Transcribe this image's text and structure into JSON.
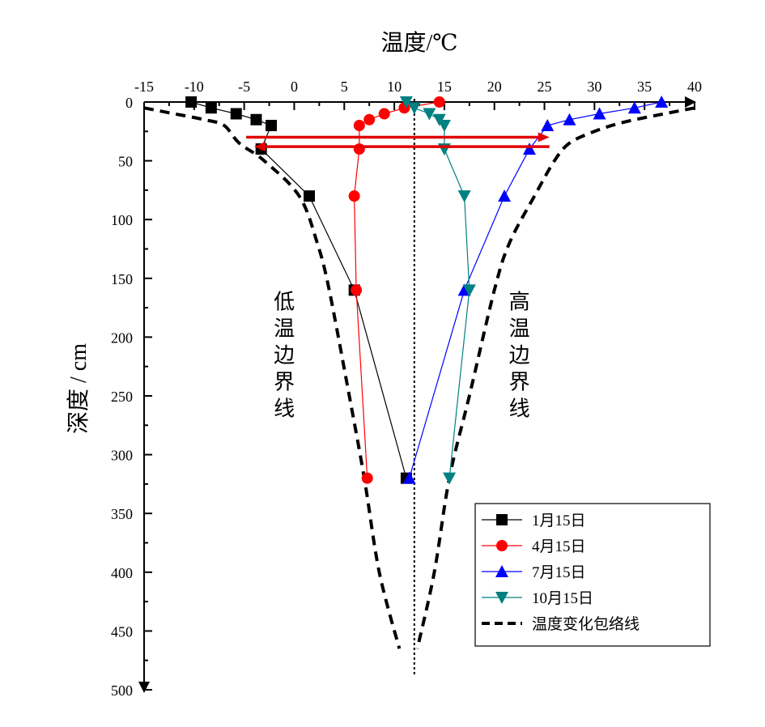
{
  "chart_data": {
    "type": "line",
    "title": "",
    "xlabel": "温度/℃",
    "ylabel": "深度 / cm",
    "xlim": [
      -15,
      40
    ],
    "ylim": [
      0,
      500
    ],
    "x_ticks": [
      -15,
      -10,
      -5,
      0,
      5,
      10,
      15,
      20,
      25,
      30,
      35,
      40
    ],
    "y_ticks": [
      0,
      50,
      100,
      150,
      200,
      250,
      300,
      350,
      400,
      450,
      500
    ],
    "x_axis_position": "top",
    "y_axis_inverted": true,
    "series": [
      {
        "name": "1月15日",
        "color": "#000000",
        "marker": "square",
        "points": [
          [
            -10.3,
            0
          ],
          [
            -8.3,
            5
          ],
          [
            -5.8,
            10
          ],
          [
            -3.8,
            15
          ],
          [
            -2.3,
            20
          ],
          [
            -3.3,
            40
          ],
          [
            1.5,
            80
          ],
          [
            6,
            160
          ],
          [
            11.2,
            320
          ]
        ]
      },
      {
        "name": "4月15日",
        "color": "#ff0000",
        "marker": "circle",
        "points": [
          [
            14.5,
            0
          ],
          [
            11,
            5
          ],
          [
            9,
            10
          ],
          [
            7.5,
            15
          ],
          [
            6.5,
            20
          ],
          [
            6.5,
            40
          ],
          [
            6,
            80
          ],
          [
            6.2,
            160
          ],
          [
            7.3,
            320
          ]
        ]
      },
      {
        "name": "7月15日",
        "color": "#0000ff",
        "marker": "triangle-up",
        "points": [
          [
            36.7,
            0
          ],
          [
            34,
            5
          ],
          [
            30.5,
            10
          ],
          [
            27.5,
            15
          ],
          [
            25.3,
            20
          ],
          [
            23.5,
            40
          ],
          [
            21,
            80
          ],
          [
            17,
            160
          ],
          [
            11.5,
            320
          ]
        ]
      },
      {
        "name": "10月15日",
        "color": "#008080",
        "marker": "triangle-down",
        "points": [
          [
            11.2,
            0
          ],
          [
            12,
            5
          ],
          [
            13.5,
            10
          ],
          [
            14.5,
            15
          ],
          [
            15,
            20
          ],
          [
            15,
            40
          ],
          [
            17,
            80
          ],
          [
            17.5,
            160
          ],
          [
            15.5,
            320
          ]
        ]
      }
    ],
    "envelope": {
      "name": "温度变化包络线",
      "color": "#000000",
      "style": "dashed",
      "low": [
        [
          -15,
          5
        ],
        [
          -12,
          10
        ],
        [
          -9,
          15
        ],
        [
          -7,
          20
        ],
        [
          -5.5,
          35
        ],
        [
          -3,
          50
        ],
        [
          0.5,
          80
        ],
        [
          2.3,
          120
        ],
        [
          3.5,
          160
        ],
        [
          5.5,
          250
        ],
        [
          7,
          320
        ],
        [
          8.5,
          400
        ],
        [
          10.5,
          465
        ]
      ],
      "high": [
        [
          40,
          5
        ],
        [
          37,
          10
        ],
        [
          33,
          17
        ],
        [
          30,
          25
        ],
        [
          27.5,
          35
        ],
        [
          26,
          50
        ],
        [
          24,
          80
        ],
        [
          21.5,
          120
        ],
        [
          20,
          160
        ],
        [
          17.5,
          250
        ],
        [
          15.5,
          320
        ],
        [
          14,
          400
        ],
        [
          12.3,
          465
        ]
      ]
    },
    "reference_line": {
      "x": 12,
      "style": "dotted",
      "color": "#000000"
    },
    "arrows": [
      {
        "from": [
          -4.8,
          30
        ],
        "to": [
          25.5,
          30
        ],
        "color": "#e00000"
      },
      {
        "from": [
          25.5,
          38
        ],
        "to": [
          -4,
          38
        ],
        "color": "#e00000"
      }
    ],
    "annotations": [
      {
        "text": "低温边界线",
        "anchor": [
          -1,
          165
        ]
      },
      {
        "text": "高温边界线",
        "anchor": [
          22.5,
          165
        ]
      }
    ],
    "legend": {
      "position": "bottom-right",
      "entries": [
        "1月15日",
        "4月15日",
        "7月15日",
        "10月15日",
        "温度变化包络线"
      ]
    }
  }
}
